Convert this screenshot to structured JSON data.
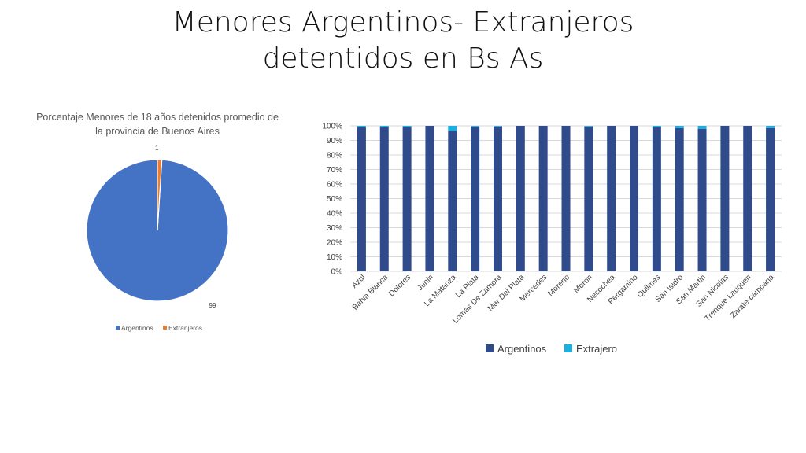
{
  "slide": {
    "title_line1": "Menores Argentinos- Extranjeros",
    "title_line2": "detentidos en Bs As"
  },
  "chart_data": [
    {
      "type": "pie",
      "title_line1": "Porcentaje Menores de 18 años detenidos promedio de",
      "title_line2": "la provincia de  Buenos Aires",
      "slices": [
        {
          "name": "Argentinos",
          "value": 99,
          "color": "#4472C4"
        },
        {
          "name": "Extranjeros",
          "value": 1,
          "color": "#ED7D31"
        }
      ],
      "legend_position": "bottom"
    },
    {
      "type": "bar",
      "stacked": "percent",
      "categories": [
        "Azul",
        "Bahia Blanca",
        "Dolores",
        "Junin",
        "La Matanza",
        "La Plata",
        "Lomas De Zamora",
        "Mar Del Plata",
        "Mercedes",
        "Moreno",
        "Moron",
        "Necochea",
        "Pergamino",
        "Quilmes",
        "San Isidro",
        "San Martin",
        "San Nicolas",
        "Trenque Lauquen",
        "Zarate-campana"
      ],
      "series": [
        {
          "name": "Argentinos",
          "color": "#2F4B8C",
          "values": [
            99,
            99,
            99,
            100,
            96.5,
            99.5,
            99.5,
            100,
            100,
            100,
            99.5,
            100,
            100,
            99,
            98.5,
            98,
            100,
            100,
            98.5
          ]
        },
        {
          "name": "Extrajero",
          "color": "#1AAFE0",
          "values": [
            1,
            1,
            1,
            0,
            3.5,
            0.5,
            0.5,
            0,
            0,
            0,
            0.5,
            0,
            0,
            1,
            1.5,
            2,
            0,
            0,
            1.5
          ]
        }
      ],
      "y_ticks": [
        "0%",
        "10%",
        "20%",
        "30%",
        "40%",
        "50%",
        "60%",
        "70%",
        "80%",
        "90%",
        "100%"
      ],
      "ylim": [
        0,
        100
      ],
      "grid": true,
      "legend_position": "bottom"
    }
  ]
}
